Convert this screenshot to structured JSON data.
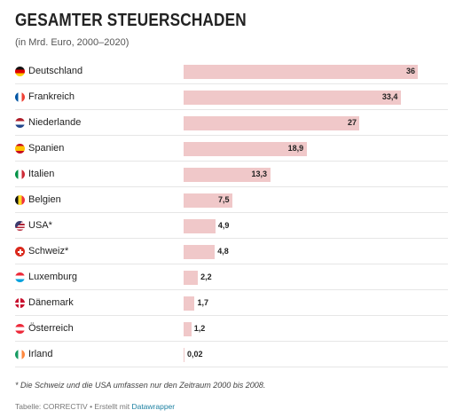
{
  "title": "GESAMTER STEUERSCHADEN",
  "subtitle": "(in Mrd. Euro, 2000–2020)",
  "footnote": "* Die Schweiz und die USA umfassen nur den Zeitraum 2000 bis 2008.",
  "credit": {
    "prefix": "Tabelle: CORRECTIV • Erstellt mit ",
    "link": "Datawrapper"
  },
  "colors": {
    "bar": "#f0c8c9",
    "link": "#1d81a2"
  },
  "chart_data": {
    "type": "bar",
    "orientation": "horizontal",
    "xlim": [
      0,
      36
    ],
    "categories": [
      "Deutschland",
      "Frankreich",
      "Niederlande",
      "Spanien",
      "Italien",
      "Belgien",
      "USA*",
      "Schweiz*",
      "Luxemburg",
      "Dänemark",
      "Österreich",
      "Irland"
    ],
    "values": [
      36,
      33.4,
      27,
      18.9,
      13.3,
      7.5,
      4.9,
      4.8,
      2.2,
      1.7,
      1.2,
      0.02
    ],
    "value_labels": [
      "36",
      "33,4",
      "27",
      "18,9",
      "13,3",
      "7,5",
      "4,9",
      "4,8",
      "2,2",
      "1,7",
      "1,2",
      "0,02"
    ],
    "flags": [
      "de-flag-icon",
      "fr-flag-icon",
      "nl-flag-icon",
      "es-flag-icon",
      "it-flag-icon",
      "be-flag-icon",
      "us-flag-icon",
      "ch-flag-icon",
      "lu-flag-icon",
      "dk-flag-icon",
      "at-flag-icon",
      "ie-flag-icon"
    ]
  }
}
